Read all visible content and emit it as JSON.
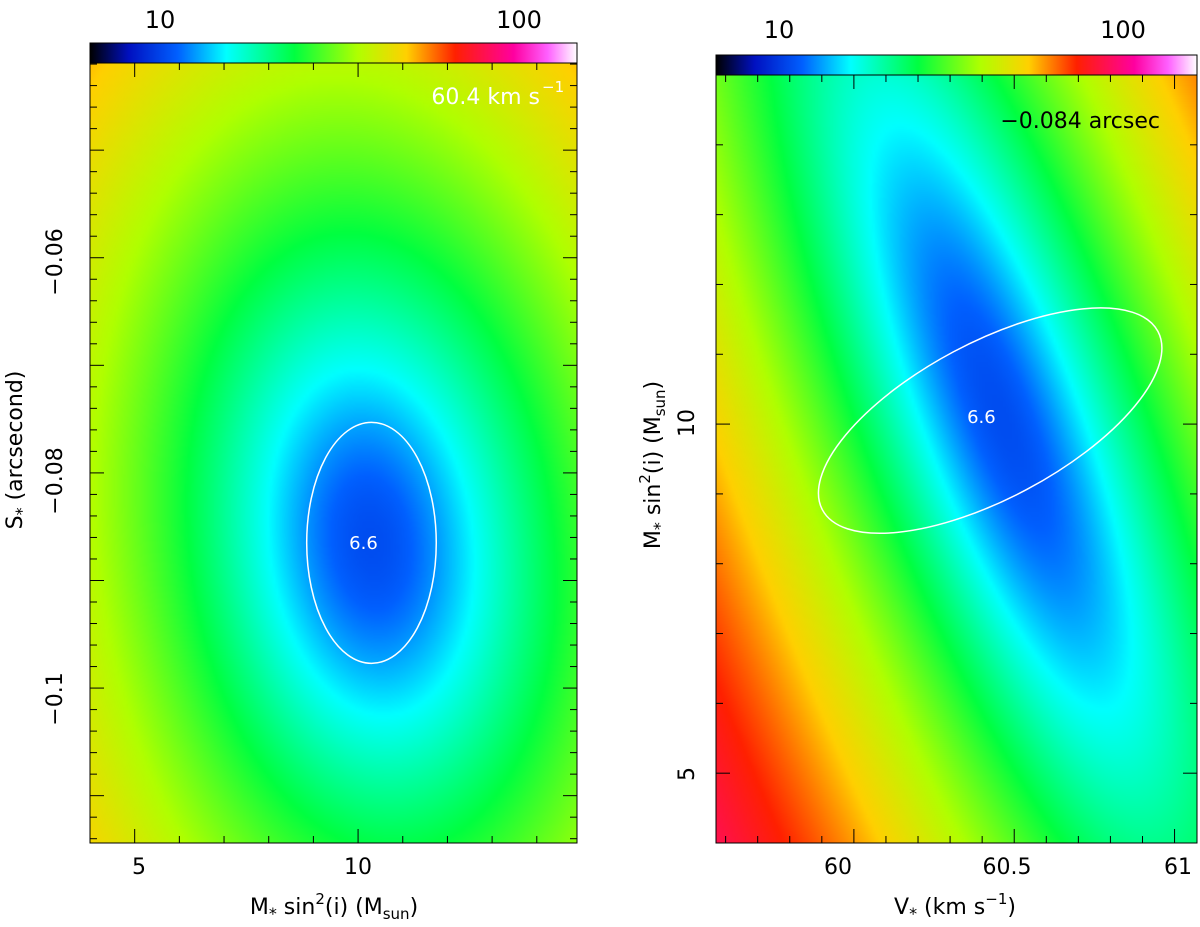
{
  "chart_data": [
    {
      "type": "heatmap",
      "colorbar": {
        "ticks": [
          10,
          100
        ],
        "tick_labels": [
          "10",
          "100"
        ],
        "scale": "log"
      },
      "annotation": "60.4 km s",
      "annotation_sup": "−1",
      "x_axis": {
        "label": "M",
        "label_sub": "*",
        "label_mid": " sin",
        "label_sup": "2",
        "label_rest": "(i) (M",
        "label_sub2": "sun",
        "label_end": ")",
        "range": [
          4.0,
          14.9
        ],
        "ticks": [
          5,
          10
        ],
        "tick_labels": [
          "5",
          "10"
        ]
      },
      "y_axis": {
        "label": "S",
        "label_sub": "*",
        "label_rest": "  (arcsecond)",
        "range": [
          -0.1144,
          -0.0419
        ],
        "ticks": [
          -0.06,
          -0.08,
          -0.1
        ],
        "tick_labels": [
          "−0.06",
          "−0.08",
          "−0.1"
        ]
      },
      "minimum": {
        "x": 10.3,
        "y": -0.0865,
        "label": "6.6"
      },
      "contour": {
        "cx": 10.3,
        "cy": -0.0865,
        "rx": 1.45,
        "ry": 0.0112,
        "color": "#ffffff"
      }
    },
    {
      "type": "heatmap",
      "colorbar": {
        "ticks": [
          10,
          100
        ],
        "tick_labels": [
          "10",
          "100"
        ],
        "scale": "log"
      },
      "annotation": "−0.084 arcsec",
      "x_axis": {
        "label": "V",
        "label_sub": "*",
        "label_rest": " (km s",
        "label_sup": "−1",
        "label_end": ")",
        "range": [
          59.57,
          61.07
        ],
        "ticks": [
          60,
          60.5,
          61
        ],
        "tick_labels": [
          "60",
          "60.5",
          "61"
        ]
      },
      "y_axis": {
        "label": "M",
        "label_sub": "*",
        "label_mid": " sin",
        "label_sup": "2",
        "label_rest": "(i) (M",
        "label_sub2": "sun",
        "label_end": ")",
        "range": [
          4.0,
          15.0
        ],
        "ticks": [
          5,
          10
        ],
        "tick_labels": [
          "5",
          "10"
        ]
      },
      "minimum": {
        "x": 60.46,
        "y": 10.1,
        "label": "6.6"
      },
      "contour": {
        "cx": 60.425,
        "cy": 10.05,
        "rx_rot": 0.55,
        "ry_rot": 0.09,
        "angle": -28,
        "color": "#ffffff"
      }
    }
  ]
}
